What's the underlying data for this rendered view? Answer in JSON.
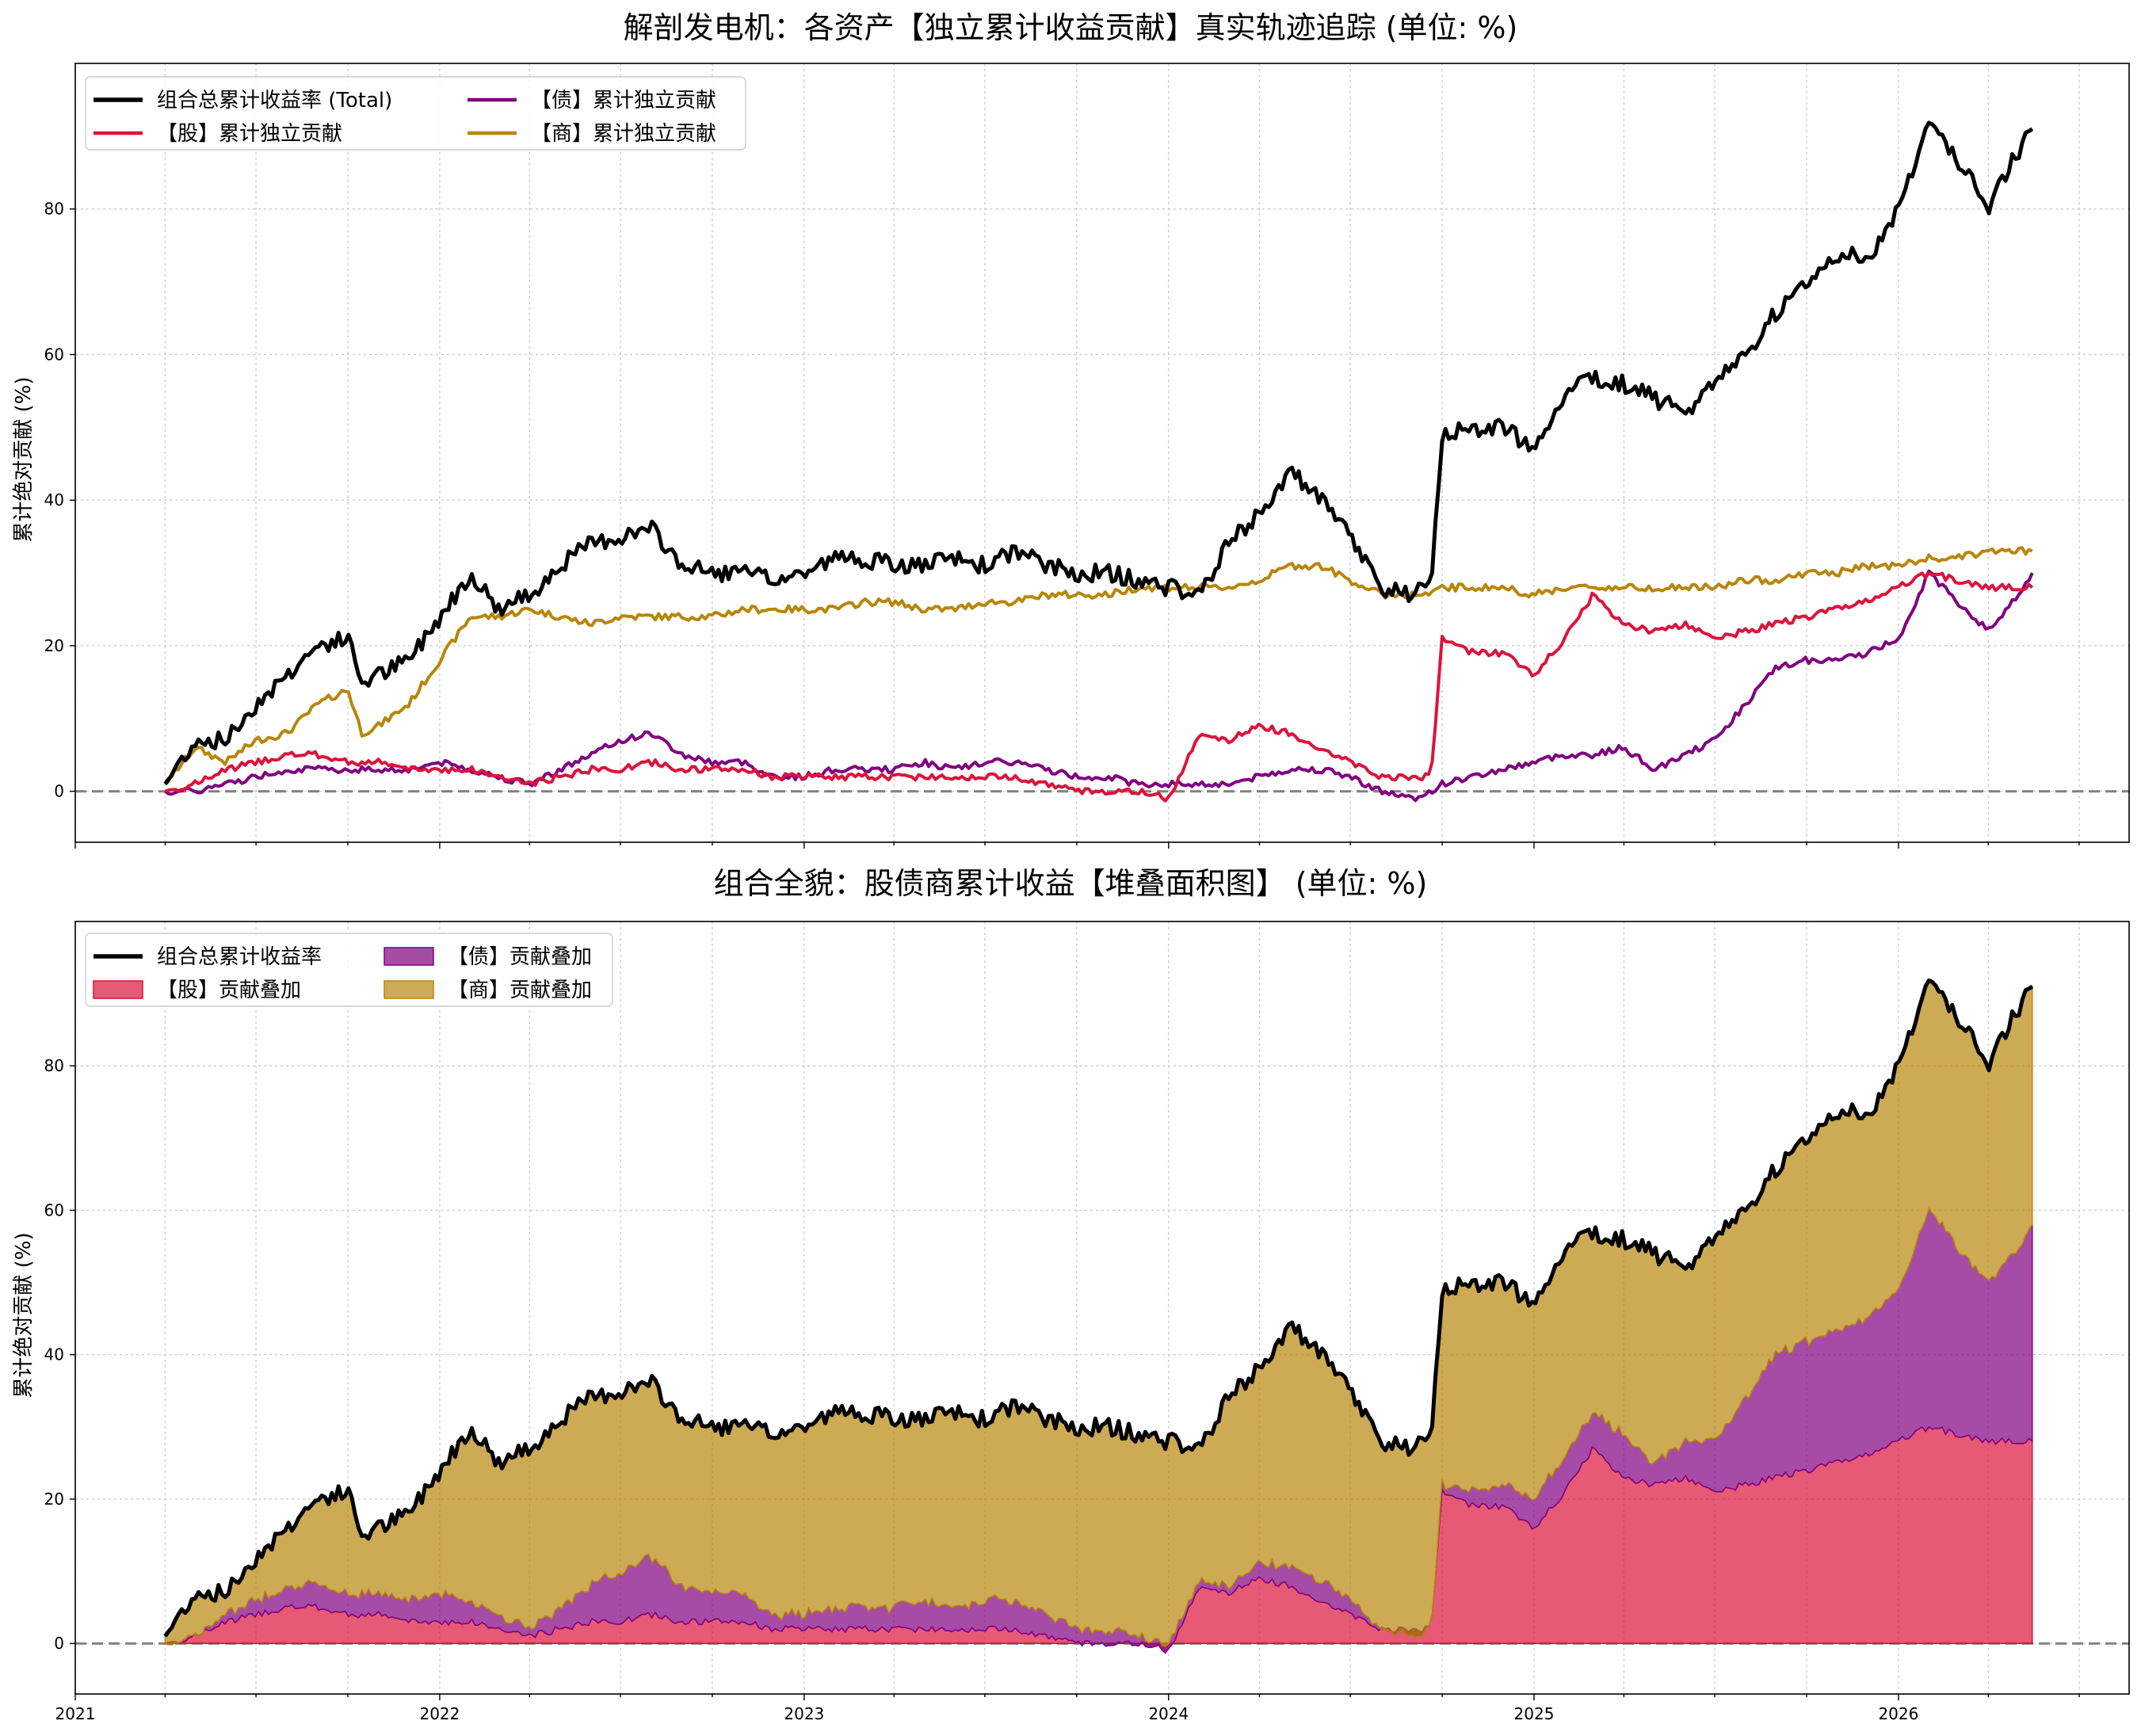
{
  "chart_data": [
    {
      "type": "line",
      "title": "解剖发电机：各资产【独立累计收益贡献】真实轨迹追踪 (单位: %)",
      "ylabel": "累计绝对贡献 (%)",
      "xlabel": "",
      "ylim": [
        -7,
        100
      ],
      "xlim": [
        "2021-01-01",
        "2026-08-20"
      ],
      "y_ticks": [
        0,
        20,
        40,
        60,
        80
      ],
      "x_tick_labels": [],
      "grid": true,
      "legend_position": "top-left",
      "x": [
        "2021-04-01",
        "2021-05-01",
        "2021-06-01",
        "2021-07-01",
        "2021-08-01",
        "2021-09-01",
        "2021-10-01",
        "2021-10-15",
        "2021-11-01",
        "2021-12-01",
        "2022-01-01",
        "2022-02-01",
        "2022-03-01",
        "2022-04-01",
        "2022-05-01",
        "2022-06-01",
        "2022-07-01",
        "2022-08-01",
        "2022-09-01",
        "2022-10-01",
        "2022-11-01",
        "2022-12-01",
        "2023-01-01",
        "2023-02-01",
        "2023-03-01",
        "2023-04-01",
        "2023-05-01",
        "2023-06-01",
        "2023-07-01",
        "2023-08-01",
        "2023-09-01",
        "2023-10-01",
        "2023-11-01",
        "2023-12-01",
        "2024-01-01",
        "2024-02-01",
        "2024-03-01",
        "2024-04-01",
        "2024-05-01",
        "2024-06-01",
        "2024-07-01",
        "2024-08-01",
        "2024-09-01",
        "2024-09-20",
        "2024-10-01",
        "2024-11-01",
        "2024-12-01",
        "2025-01-01",
        "2025-02-01",
        "2025-03-01",
        "2025-04-01",
        "2025-05-01",
        "2025-06-01",
        "2025-07-01",
        "2025-08-01",
        "2025-09-01",
        "2025-10-01",
        "2025-11-01",
        "2025-12-01",
        "2026-01-01",
        "2026-02-01",
        "2026-03-01",
        "2026-04-01",
        "2026-05-01",
        "2026-05-15"
      ],
      "series": [
        {
          "name": "组合总累计收益率 (Total)",
          "color": "#000000",
          "values": [
            1,
            7,
            7,
            12,
            16,
            20,
            21,
            15,
            16,
            18,
            24,
            30,
            25,
            27,
            31,
            34,
            35,
            36,
            31,
            30,
            30,
            29,
            30,
            32,
            32,
            31,
            31,
            32,
            31,
            33,
            31,
            30,
            30,
            29,
            28,
            27,
            34,
            38,
            44,
            40,
            35,
            28,
            27,
            28,
            49,
            50,
            50,
            47,
            55,
            57,
            56,
            54,
            52,
            56,
            60,
            66,
            70,
            74,
            73,
            80,
            92,
            87,
            80,
            88,
            91
          ]
        },
        {
          "name": "【股】累计独立贡献",
          "color": "#DC143C",
          "values": [
            0,
            1,
            3,
            4,
            5,
            5,
            4,
            4,
            4,
            3,
            3,
            3,
            2,
            1,
            2,
            3,
            3,
            4,
            3,
            3,
            3,
            2,
            2,
            2,
            2,
            2,
            2,
            2,
            2,
            2,
            1,
            0,
            0,
            0,
            -1,
            8,
            7,
            9,
            8,
            6,
            4,
            2,
            2,
            2,
            21,
            19,
            19,
            16,
            21,
            27,
            23,
            22,
            23,
            21,
            22,
            23,
            24,
            25,
            26,
            28,
            30,
            29,
            28,
            28,
            28
          ]
        },
        {
          "name": "【债】累计独立贡献",
          "color": "#800080",
          "values": [
            0,
            0,
            1,
            2,
            3,
            3,
            3,
            3,
            3,
            3,
            4,
            3,
            2,
            1,
            3,
            5,
            7,
            8,
            5,
            4,
            4,
            2,
            2,
            3,
            3,
            3,
            4,
            3,
            4,
            4,
            3,
            2,
            2,
            1,
            1,
            1,
            1,
            2,
            3,
            3,
            2,
            0,
            -1,
            0,
            1,
            2,
            3,
            4,
            5,
            5,
            6,
            3,
            5,
            7,
            12,
            17,
            18,
            18,
            19,
            21,
            30,
            26,
            22,
            27,
            30
          ]
        },
        {
          "name": "【商】累计独立贡献",
          "color": "#B8860B",
          "values": [
            1,
            6,
            4,
            7,
            8,
            12,
            14,
            8,
            9,
            12,
            18,
            24,
            24,
            25,
            24,
            23,
            24,
            24,
            24,
            24,
            25,
            25,
            25,
            25,
            26,
            26,
            25,
            25,
            26,
            26,
            27,
            27,
            27,
            28,
            28,
            28,
            28,
            29,
            31,
            31,
            29,
            27,
            27,
            27,
            28,
            28,
            28,
            27,
            28,
            28,
            28,
            28,
            28,
            28,
            29,
            29,
            30,
            30,
            31,
            31,
            32,
            32,
            33,
            33,
            33
          ]
        }
      ]
    },
    {
      "type": "area",
      "title": "组合全貌：股债商累计收益【堆叠面积图】 (单位: %)",
      "ylabel": "累计绝对贡献 (%)",
      "xlabel": "",
      "ylim": [
        -7,
        100
      ],
      "xlim": [
        "2021-01-01",
        "2026-08-20"
      ],
      "y_ticks": [
        0,
        20,
        40,
        60,
        80
      ],
      "x_tick_labels": [
        "2021",
        "2022",
        "2023",
        "2024",
        "2025",
        "2026"
      ],
      "grid": true,
      "legend_position": "top-left",
      "stacked": true,
      "series_order": [
        "【股】贡献叠加",
        "【债】贡献叠加",
        "【商】贡献叠加"
      ],
      "legend": [
        {
          "label": "组合总累计收益率",
          "kind": "line",
          "color": "#000000"
        },
        {
          "label": "【股】贡献叠加",
          "kind": "area",
          "color": "#DC143C"
        },
        {
          "label": "【债】贡献叠加",
          "kind": "area",
          "color": "#800080"
        },
        {
          "label": "【商】贡献叠加",
          "kind": "area",
          "color": "#B8860B"
        }
      ]
    }
  ]
}
